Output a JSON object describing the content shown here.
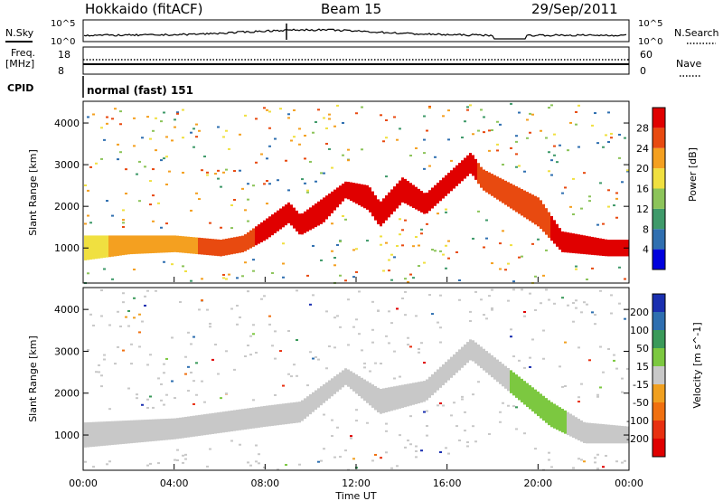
{
  "header": {
    "station": "Hokkaido (fitACF)",
    "beam": "Beam 15",
    "date": "29/Sep/2011"
  },
  "top_panels": {
    "nsky_label": "N.Sky",
    "nsearch_label": "N.Search",
    "log_ticks": [
      "10^5",
      "10^0"
    ],
    "freq_label": "Freq.",
    "freq_unit": "[MHz]",
    "freq_ticks": [
      "18",
      "8"
    ],
    "nave_label": "Nave",
    "nave_ticks": [
      "60",
      "0"
    ],
    "cpid_label": "CPID",
    "cpid_value": "normal (fast) 151"
  },
  "chart_data": [
    {
      "type": "heatmap",
      "name": "power",
      "ylabel": "Slant Range [km]",
      "xlabel": "Time UT",
      "xticks": [
        "00:00",
        "04:00",
        "08:00",
        "12:00",
        "16:00",
        "20:00",
        "00:00"
      ],
      "xlim_hours": [
        0,
        24
      ],
      "yticks": [
        1000,
        2000,
        3000,
        4000
      ],
      "ylim": [
        180,
        4500
      ],
      "colorbar": {
        "label": "Power [dB]",
        "ticks": [
          4,
          8,
          12,
          16,
          20,
          24,
          28
        ],
        "range": [
          0,
          32
        ],
        "colors": [
          "#0000dd",
          "#2f6fb0",
          "#3f9a6a",
          "#8cc45a",
          "#f0e040",
          "#f4a020",
          "#e84a10",
          "#e00000"
        ]
      },
      "echo_bands": [
        {
          "t": 0.0,
          "lo": 700,
          "hi": 1300,
          "cat": 4
        },
        {
          "t": 2.0,
          "lo": 850,
          "hi": 1300,
          "cat": 5
        },
        {
          "t": 4.0,
          "lo": 900,
          "hi": 1300,
          "cat": 5
        },
        {
          "t": 6.0,
          "lo": 800,
          "hi": 1200,
          "cat": 6
        },
        {
          "t": 7.0,
          "lo": 900,
          "hi": 1300,
          "cat": 6
        },
        {
          "t": 8.0,
          "lo": 1200,
          "hi": 1700,
          "cat": 7
        },
        {
          "t": 9.0,
          "lo": 1600,
          "hi": 2100,
          "cat": 7
        },
        {
          "t": 9.5,
          "lo": 1300,
          "hi": 1800,
          "cat": 7
        },
        {
          "t": 10.5,
          "lo": 1600,
          "hi": 2200,
          "cat": 7
        },
        {
          "t": 11.5,
          "lo": 2200,
          "hi": 2600,
          "cat": 7
        },
        {
          "t": 12.5,
          "lo": 1900,
          "hi": 2500,
          "cat": 7
        },
        {
          "t": 13.0,
          "lo": 1500,
          "hi": 2100,
          "cat": 7
        },
        {
          "t": 14.0,
          "lo": 2100,
          "hi": 2700,
          "cat": 7
        },
        {
          "t": 15.0,
          "lo": 1800,
          "hi": 2300,
          "cat": 7
        },
        {
          "t": 16.0,
          "lo": 2300,
          "hi": 2800,
          "cat": 7
        },
        {
          "t": 17.0,
          "lo": 2800,
          "hi": 3300,
          "cat": 7
        },
        {
          "t": 17.5,
          "lo": 2400,
          "hi": 2900,
          "cat": 6
        },
        {
          "t": 20.0,
          "lo": 1500,
          "hi": 2200,
          "cat": 6
        },
        {
          "t": 21.0,
          "lo": 900,
          "hi": 1400,
          "cat": 7
        },
        {
          "t": 23.0,
          "lo": 800,
          "hi": 1200,
          "cat": 7
        },
        {
          "t": 24.0,
          "lo": 800,
          "hi": 1200,
          "cat": 7
        }
      ]
    },
    {
      "type": "heatmap",
      "name": "velocity",
      "ylabel": "Slant Range [km]",
      "xlabel": "Time UT",
      "xticks": [
        "00:00",
        "04:00",
        "08:00",
        "12:00",
        "16:00",
        "20:00",
        "00:00"
      ],
      "xlim_hours": [
        0,
        24
      ],
      "yticks": [
        1000,
        2000,
        3000,
        4000
      ],
      "ylim": [
        180,
        4500
      ],
      "colorbar": {
        "label": "Velocity [m s^-1]",
        "ticks": [
          200,
          100,
          50,
          15,
          -15,
          -50,
          -100,
          -200
        ],
        "colors": [
          "#1a2fb0",
          "#2e6fb0",
          "#3a9a5a",
          "#7cc840",
          "#c8c8c8",
          "#f0a020",
          "#f07010",
          "#e83010",
          "#e00000"
        ]
      },
      "echo_bands": [
        {
          "t": 0.0,
          "lo": 700,
          "hi": 1300,
          "cat": 4
        },
        {
          "t": 4.0,
          "lo": 900,
          "hi": 1400,
          "cat": 4
        },
        {
          "t": 8.0,
          "lo": 1200,
          "hi": 1700,
          "cat": 4
        },
        {
          "t": 9.5,
          "lo": 1300,
          "hi": 1800,
          "cat": 4
        },
        {
          "t": 11.5,
          "lo": 2200,
          "hi": 2600,
          "cat": 4
        },
        {
          "t": 13.0,
          "lo": 1500,
          "hi": 2100,
          "cat": 4
        },
        {
          "t": 15.0,
          "lo": 1800,
          "hi": 2300,
          "cat": 4
        },
        {
          "t": 17.0,
          "lo": 2800,
          "hi": 3300,
          "cat": 4
        },
        {
          "t": 20.5,
          "lo": 1200,
          "hi": 1800,
          "cat": 3
        },
        {
          "t": 22.0,
          "lo": 800,
          "hi": 1300,
          "cat": 4
        },
        {
          "t": 24.0,
          "lo": 800,
          "hi": 1200,
          "cat": 4
        }
      ]
    }
  ]
}
